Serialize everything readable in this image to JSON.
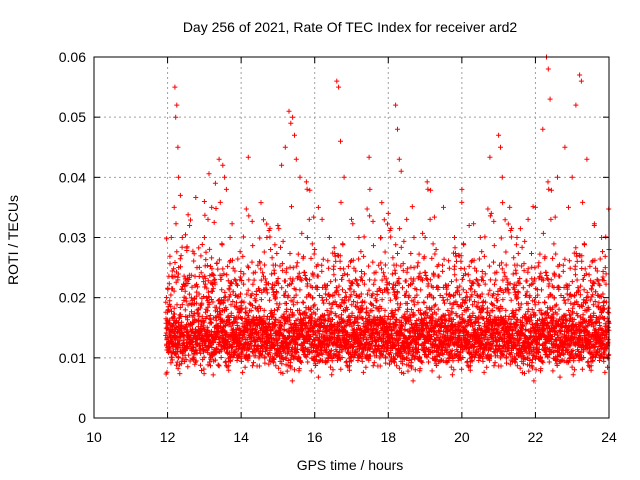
{
  "chart_data": {
    "type": "scatter",
    "title": "Day 256 of 2021, Rate Of TEC Index for receiver ard2",
    "xlabel": "GPS time / hours",
    "ylabel": "ROTI / TECUs",
    "xlim": [
      10,
      24
    ],
    "ylim": [
      0,
      0.06
    ],
    "x_ticks": [
      "10",
      "12",
      "14",
      "16",
      "18",
      "20",
      "22",
      "24"
    ],
    "y_ticks": [
      "0",
      "0.01",
      "0.02",
      "0.03",
      "0.04",
      "0.05",
      "0.06"
    ],
    "grid": true,
    "marker": "plus",
    "color": "#ff0000",
    "x_data_range": [
      11.95,
      24.0
    ],
    "series": [
      {
        "x": [
          12.1,
          12.2,
          12.25,
          12.22,
          12.28,
          12.3,
          12.35,
          12.18,
          12.4,
          12.6,
          12.8,
          13.0,
          13.2,
          13.4,
          13.5,
          13.55,
          13.6,
          13.7,
          13.3,
          13.1,
          14.2,
          14.5,
          14.7,
          14.8,
          15.0,
          15.1,
          15.2,
          15.3,
          15.35,
          15.4,
          15.45,
          15.5,
          15.6,
          15.8,
          16.0,
          16.1,
          16.2,
          16.4,
          16.6,
          16.65,
          16.7,
          16.8,
          17.0,
          17.2,
          17.5,
          17.8,
          18.0,
          18.2,
          18.25,
          18.3,
          18.35,
          18.5,
          18.7,
          19.0,
          19.3,
          19.5,
          19.8,
          20.0,
          20.2,
          20.5,
          20.8,
          21.0,
          21.05,
          21.1,
          21.3,
          21.5,
          21.8,
          22.0,
          22.2,
          22.3,
          22.35,
          22.4,
          22.6,
          22.8,
          22.9,
          23.0,
          23.1,
          23.2,
          23.25,
          23.4,
          23.6,
          23.8,
          23.9,
          24.0
        ],
        "y": [
          0.03,
          0.055,
          0.052,
          0.05,
          0.045,
          0.04,
          0.037,
          0.035,
          0.03,
          0.032,
          0.025,
          0.03,
          0.035,
          0.043,
          0.042,
          0.04,
          0.038,
          0.03,
          0.039,
          0.033,
          0.025,
          0.026,
          0.03,
          0.028,
          0.032,
          0.042,
          0.045,
          0.051,
          0.049,
          0.05,
          0.047,
          0.043,
          0.04,
          0.03,
          0.028,
          0.035,
          0.033,
          0.03,
          0.056,
          0.055,
          0.046,
          0.04,
          0.033,
          0.03,
          0.038,
          0.03,
          0.034,
          0.052,
          0.048,
          0.043,
          0.041,
          0.033,
          0.03,
          0.03,
          0.028,
          0.035,
          0.03,
          0.038,
          0.032,
          0.03,
          0.034,
          0.047,
          0.045,
          0.04,
          0.035,
          0.03,
          0.033,
          0.035,
          0.048,
          0.06,
          0.058,
          0.053,
          0.04,
          0.045,
          0.035,
          0.04,
          0.052,
          0.057,
          0.056,
          0.043,
          0.032,
          0.03,
          0.025,
          0.028
        ]
      }
    ]
  }
}
